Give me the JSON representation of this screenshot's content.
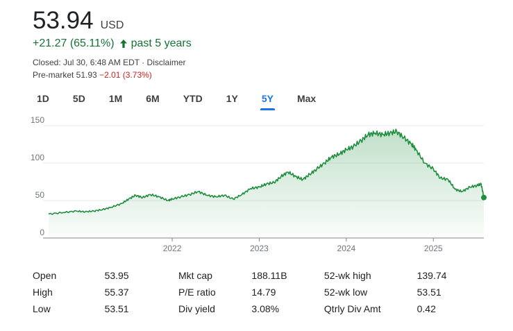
{
  "quote": {
    "price": "53.94",
    "currency": "USD",
    "change": "+21.27 (65.11%)",
    "period": "past 5 years",
    "closed_text": "Closed: Jul 30, 6:48 AM EDT",
    "disclaimer": "Disclaimer",
    "premarket_label": "Pre-market 51.93",
    "premarket_change": "−2.01 (3.73%)"
  },
  "tabs": [
    {
      "label": "1D"
    },
    {
      "label": "5D"
    },
    {
      "label": "1M"
    },
    {
      "label": "6M"
    },
    {
      "label": "YTD"
    },
    {
      "label": "1Y"
    },
    {
      "label": "5Y",
      "active": true
    },
    {
      "label": "Max"
    }
  ],
  "chart_data": {
    "type": "area",
    "y_ticks": [
      0,
      50,
      100,
      150
    ],
    "x_tick_labels": [
      "2022",
      "2023",
      "2024",
      "2025"
    ],
    "x_tick_positions": [
      2022.0,
      2023.0,
      2024.0,
      2025.0
    ],
    "xlim": [
      2020.58,
      2025.58
    ],
    "ylim": [
      0,
      150
    ],
    "grid": true,
    "line_color": "#1e8e3e",
    "series": [
      {
        "x": [
          2020.58,
          2020.75,
          2020.9,
          2021.0,
          2021.1,
          2021.2,
          2021.3,
          2021.42,
          2021.5,
          2021.58,
          2021.66,
          2021.75,
          2021.85,
          2021.95,
          2022.0,
          2022.1,
          2022.2,
          2022.3,
          2022.4,
          2022.5,
          2022.6,
          2022.7,
          2022.8,
          2022.9,
          2023.0,
          2023.08,
          2023.17,
          2023.25,
          2023.33,
          2023.42,
          2023.5,
          2023.58,
          2023.66,
          2023.75,
          2023.83,
          2023.92,
          2024.0,
          2024.08,
          2024.17,
          2024.25,
          2024.33,
          2024.42,
          2024.5,
          2024.58,
          2024.66,
          2024.75,
          2024.8,
          2024.9,
          2025.0,
          2025.08,
          2025.17,
          2025.25,
          2025.33,
          2025.42,
          2025.5,
          2025.55,
          2025.58
        ],
        "values": [
          32,
          34,
          36,
          35,
          36,
          38,
          41,
          46,
          52,
          57,
          54,
          58,
          55,
          50,
          52,
          55,
          58,
          62,
          57,
          55,
          57,
          52,
          58,
          66,
          68,
          72,
          74,
          82,
          88,
          82,
          78,
          85,
          92,
          100,
          108,
          112,
          118,
          122,
          130,
          138,
          140,
          138,
          140,
          142,
          134,
          125,
          118,
          100,
          92,
          80,
          78,
          65,
          62,
          68,
          70,
          72,
          54
        ]
      }
    ]
  },
  "stats": [
    [
      {
        "label": "Open",
        "value": "53.95"
      },
      {
        "label": "Mkt cap",
        "value": "188.11B"
      },
      {
        "label": "52-wk high",
        "value": "139.74"
      }
    ],
    [
      {
        "label": "High",
        "value": "55.37"
      },
      {
        "label": "P/E ratio",
        "value": "14.79"
      },
      {
        "label": "52-wk low",
        "value": "53.51"
      }
    ],
    [
      {
        "label": "Low",
        "value": "53.51"
      },
      {
        "label": "Div yield",
        "value": "3.08%"
      },
      {
        "label": "Qtrly Div Amt",
        "value": "0.42"
      }
    ]
  ]
}
